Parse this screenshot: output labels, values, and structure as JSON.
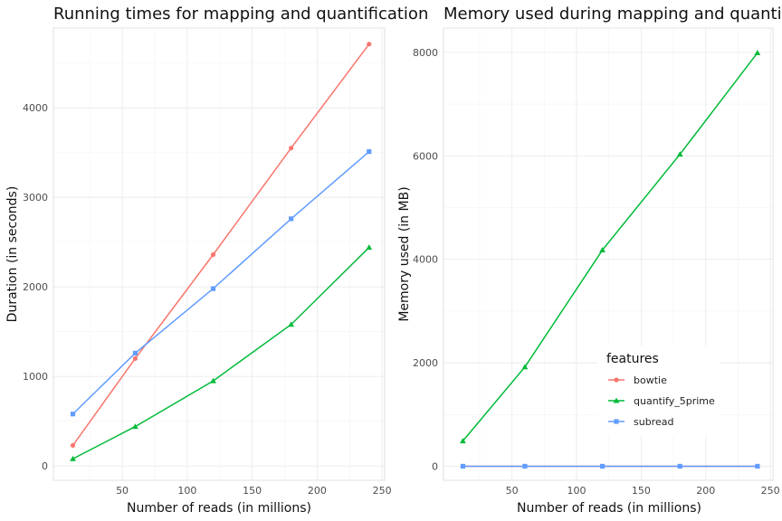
{
  "colors": {
    "bowtie": "#F8766D",
    "quantify_5prime": "#00BA38",
    "subread": "#619CFF"
  },
  "legend": {
    "title": "features",
    "entries": [
      "bowtie",
      "quantify_5prime",
      "subread"
    ]
  },
  "chart_data": [
    {
      "type": "line",
      "title": "Running times for mapping and quantification",
      "xlabel": "Number of reads (in millions)",
      "ylabel": "Duration (in seconds)",
      "xlim": [
        0,
        250
      ],
      "ylim": [
        0,
        4800
      ],
      "xticks": [
        50,
        100,
        150,
        200,
        250
      ],
      "yticks": [
        0,
        1000,
        2000,
        3000,
        4000
      ],
      "grid": true,
      "x": [
        12,
        60,
        120,
        180,
        240
      ],
      "series": [
        {
          "name": "bowtie",
          "marker": "circle",
          "values": [
            230,
            1200,
            2360,
            3550,
            4710
          ]
        },
        {
          "name": "quantify_5prime",
          "marker": "triangle",
          "values": [
            80,
            440,
            950,
            1580,
            2440
          ]
        },
        {
          "name": "subread",
          "marker": "square",
          "values": [
            580,
            1260,
            1980,
            2760,
            3510
          ]
        }
      ]
    },
    {
      "type": "line",
      "title": "Memory used during mapping and quantificatio",
      "xlabel": "Number of reads (in millions)",
      "ylabel": "Memory used (in MB)",
      "xlim": [
        0,
        250
      ],
      "ylim": [
        0,
        8000
      ],
      "xticks": [
        50,
        100,
        150,
        200,
        250
      ],
      "yticks": [
        0,
        2000,
        4000,
        6000,
        8000
      ],
      "grid": true,
      "legend_position": "bottom-right inside",
      "x": [
        12,
        60,
        120,
        180,
        240
      ],
      "series": [
        {
          "name": "bowtie",
          "marker": "circle",
          "values": [
            2,
            2,
            2,
            2,
            2
          ]
        },
        {
          "name": "quantify_5prime",
          "marker": "triangle",
          "values": [
            490,
            1920,
            4180,
            6030,
            7990
          ]
        },
        {
          "name": "subread",
          "marker": "square",
          "values": [
            2,
            2,
            2,
            2,
            2
          ]
        }
      ]
    }
  ]
}
